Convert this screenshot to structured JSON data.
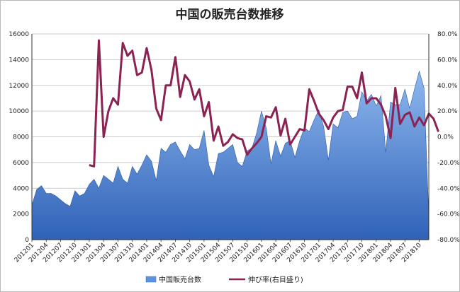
{
  "chart_data": {
    "type": "area",
    "title": "中国の販売台数推移",
    "xlabel": "",
    "ylabel": "",
    "x_tick_labels": [
      "201201",
      "201204",
      "201207",
      "201210",
      "201301",
      "201304",
      "201307",
      "201310",
      "201401",
      "201404",
      "201407",
      "201410",
      "201501",
      "201504",
      "201507",
      "201510",
      "201601",
      "201604",
      "201607",
      "201610",
      "201701",
      "201704",
      "201707",
      "201710",
      "201801",
      "201804",
      "201807",
      "201810"
    ],
    "ylim": [
      0,
      16000
    ],
    "y_ticks": [
      "0",
      "2000",
      "4000",
      "6000",
      "8000",
      "10000",
      "12000",
      "14000",
      "16000"
    ],
    "y2lim": [
      -80,
      80
    ],
    "y2_ticks": [
      "-80.0%",
      "-60.0%",
      "-40.0%",
      "-20.0%",
      "0.0%",
      "20.0%",
      "40.0%",
      "60.0%",
      "80.0%"
    ],
    "grid": true,
    "legend_position": "bottom",
    "series": [
      {
        "name": "中国販売台数",
        "type": "area",
        "axis": "left",
        "color": "#4a86d8",
        "values": [
          2700,
          3900,
          4200,
          3600,
          3600,
          3400,
          3100,
          2800,
          2600,
          3800,
          3400,
          3600,
          4300,
          4700,
          4000,
          5000,
          4700,
          4400,
          5700,
          4700,
          4400,
          5700,
          5100,
          5800,
          6600,
          6100,
          4600,
          7100,
          6800,
          7400,
          7600,
          6900,
          6300,
          7400,
          7000,
          7100,
          8500,
          5800,
          4900,
          6700,
          6800,
          7100,
          7400,
          6000,
          5700,
          6900,
          7100,
          8300,
          10000,
          8700,
          5900,
          7700,
          6500,
          7500,
          7700,
          6400,
          7700,
          8700,
          8400,
          9300,
          10100,
          8800,
          6200,
          9000,
          8700,
          9900,
          10000,
          9400,
          9600,
          11500,
          10800,
          11300,
          10400,
          11200,
          6800,
          10700,
          10500,
          10500,
          11700,
          10200,
          11700,
          13100,
          11800,
          1800
        ]
      },
      {
        "name": "伸び率(右目盛り)",
        "type": "line",
        "axis": "right",
        "color": "#8b2252",
        "start_index": 12,
        "values": [
          -22,
          -23,
          75,
          0,
          20,
          30,
          25,
          73,
          63,
          67,
          48,
          50,
          69,
          52,
          22,
          13,
          40,
          40,
          62,
          31,
          48,
          43,
          29,
          37,
          16,
          27,
          -3,
          8,
          -7,
          -4,
          2,
          -1,
          -2,
          -14,
          -9,
          -5,
          0,
          16,
          15,
          23,
          1,
          14,
          -6,
          0,
          6,
          5,
          37,
          28,
          18,
          13,
          6,
          15,
          20,
          21,
          39,
          39,
          30,
          50,
          26,
          30,
          30,
          25,
          16,
          -1,
          38,
          10,
          17,
          19,
          8,
          15,
          9,
          18,
          14,
          4
        ]
      }
    ]
  }
}
